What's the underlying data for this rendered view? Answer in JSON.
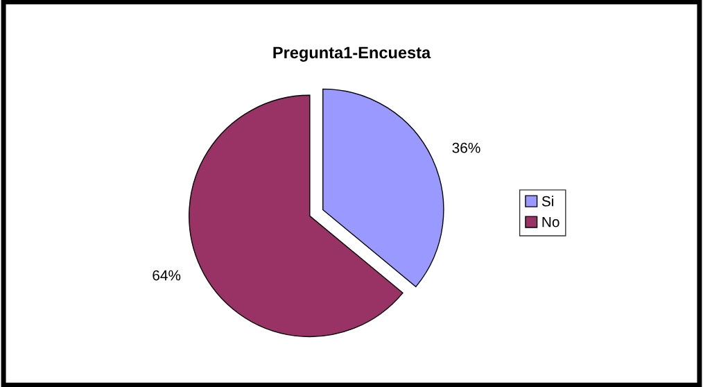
{
  "chart_data": {
    "type": "pie",
    "title": "Pregunta1-Encuesta",
    "categories": [
      "Si",
      "No"
    ],
    "values": [
      36,
      64
    ],
    "colors": [
      "#9999ff",
      "#993366"
    ],
    "value_labels": [
      "36%",
      "64%"
    ],
    "legend": "right"
  }
}
